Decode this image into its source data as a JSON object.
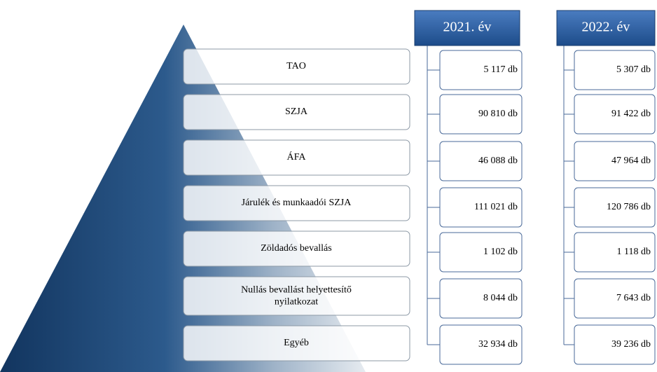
{
  "rows": [
    "TAO",
    "SZJA",
    "ÁFA",
    "Járulék és munkaadói  SZJA",
    "Zöldadós bevallás",
    "Nullás bevallást helyettesítő nyilatkozat",
    "Egyéb"
  ],
  "columns": [
    {
      "header": "2021. év",
      "values": [
        "5 117 db",
        "90 810 db",
        "46 088 db",
        "111 021 db",
        "1 102 db",
        "8 044 db",
        "32 934 db"
      ]
    },
    {
      "header": "2022. év",
      "values": [
        "5 307 db",
        "91 422 db",
        "47 964 db",
        "120 786 db",
        "1 118 db",
        "7 643 db",
        "39 236 db"
      ]
    }
  ]
}
